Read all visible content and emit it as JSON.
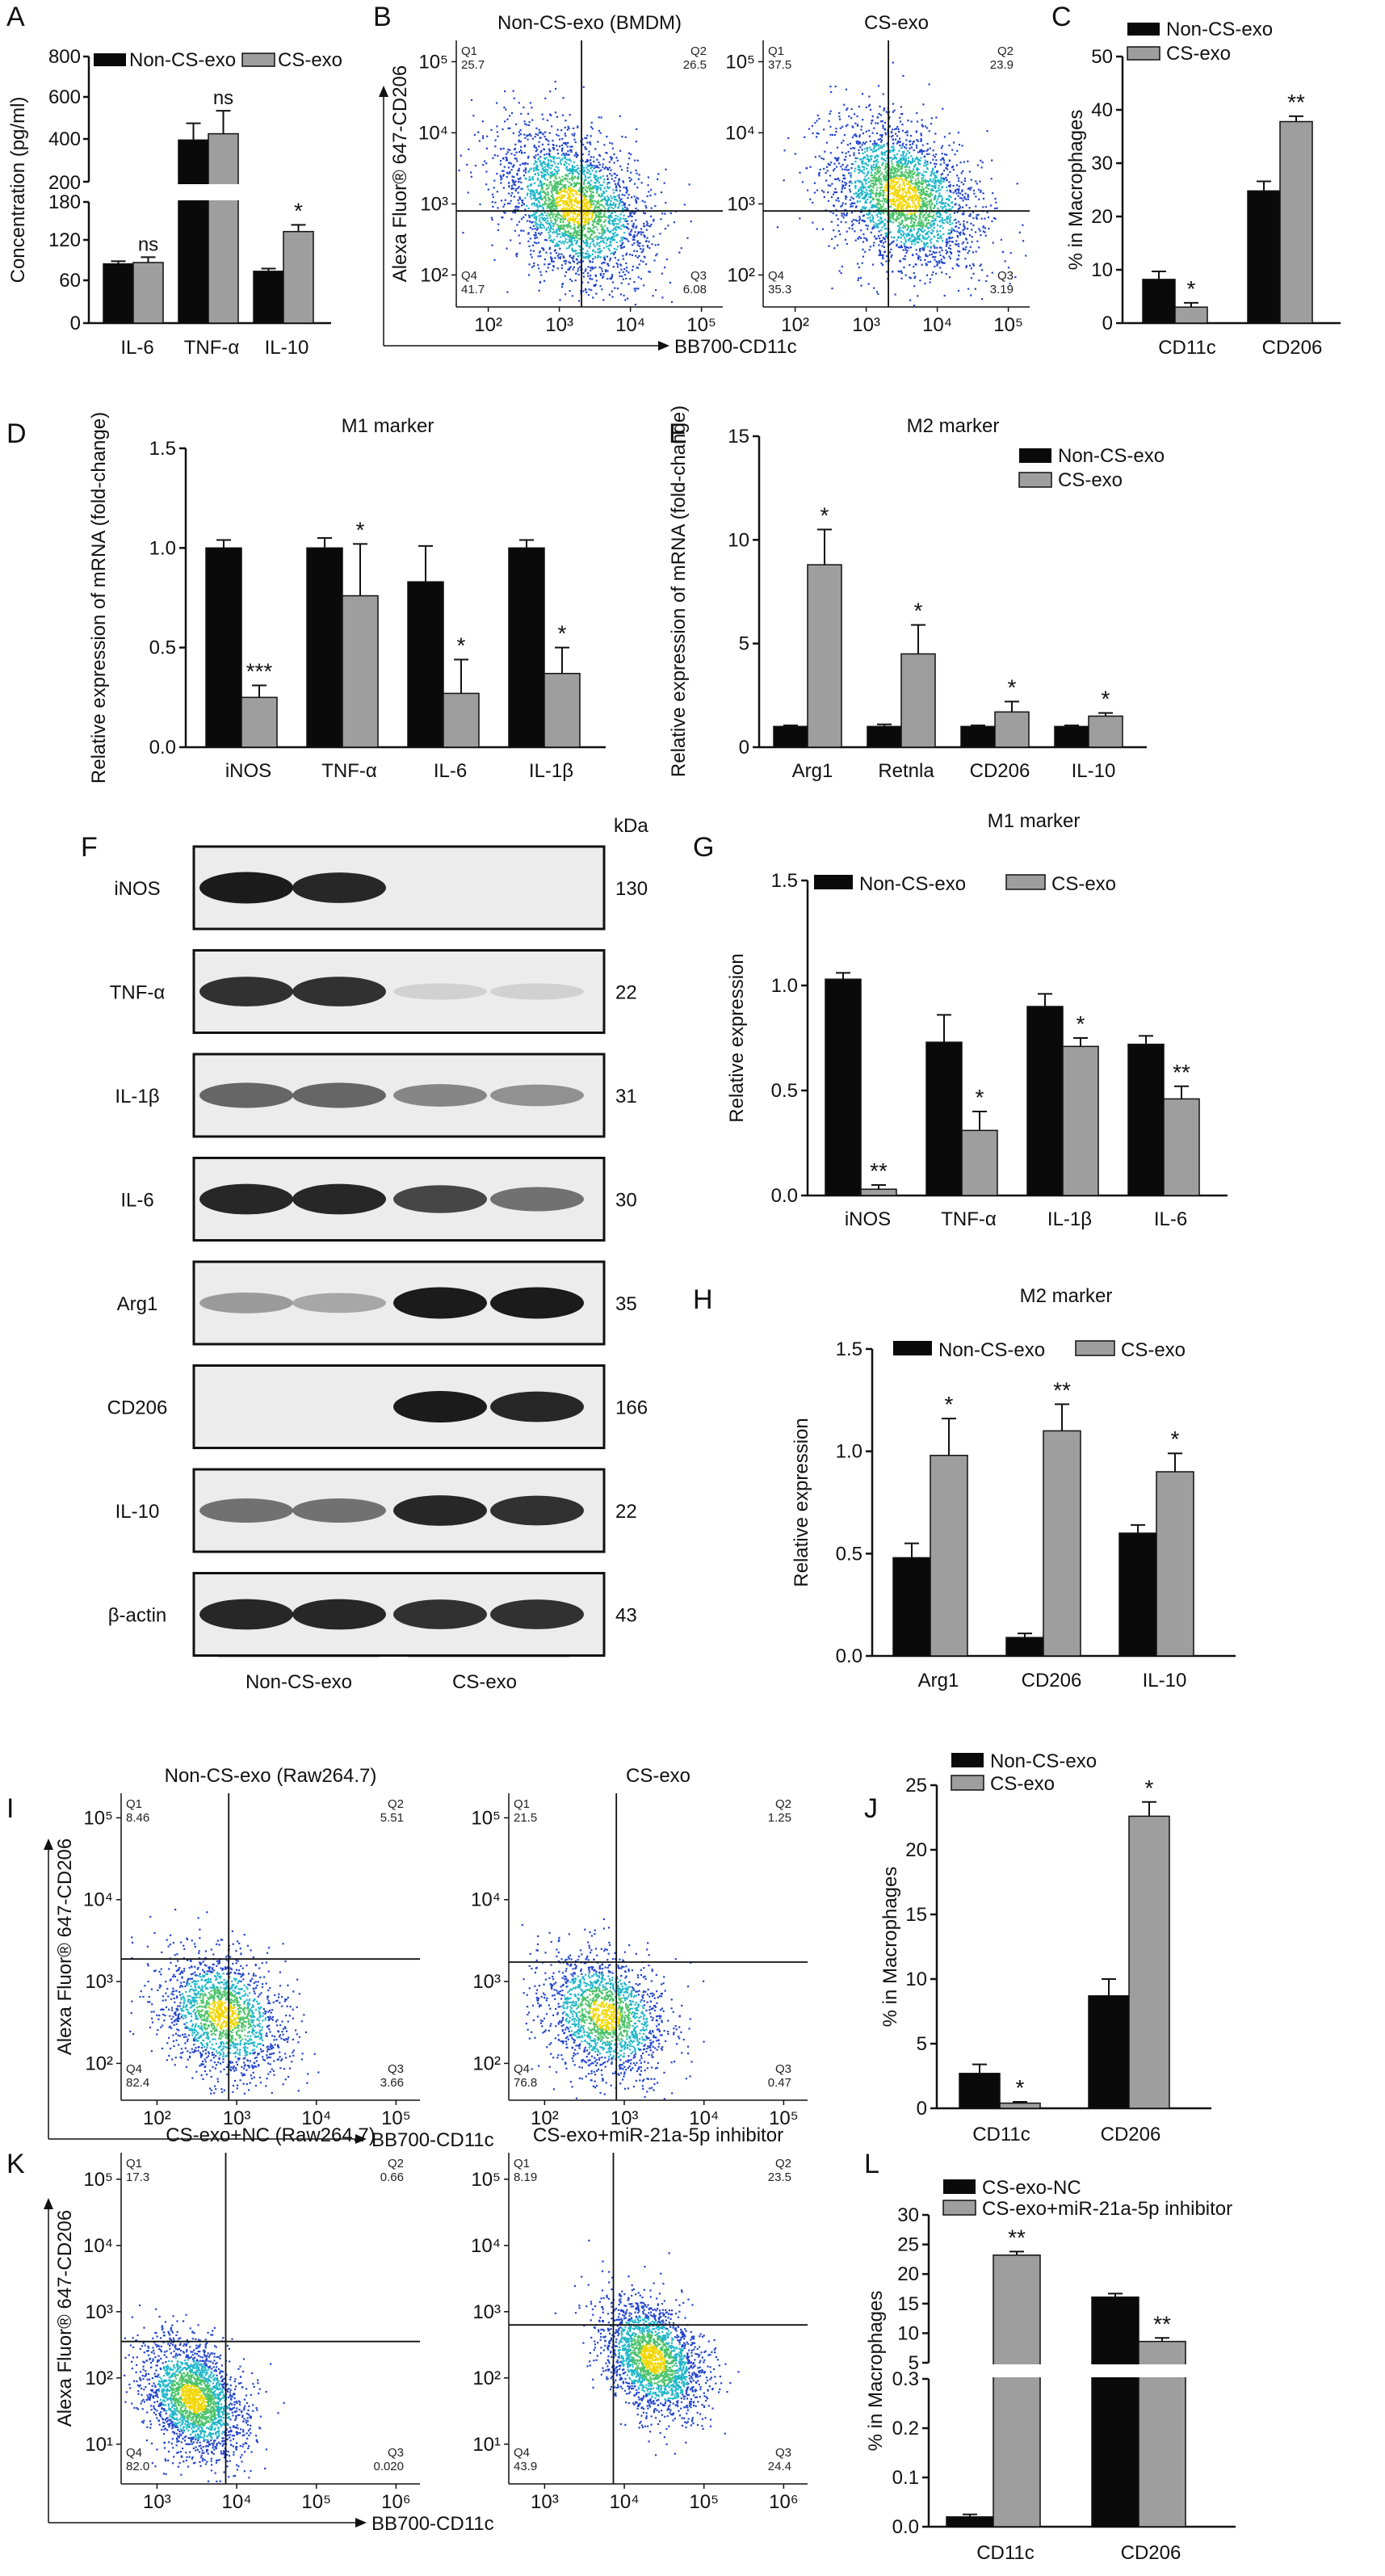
{
  "colors": {
    "series1": "#0a0a0a",
    "series2": "#9e9e9e"
  },
  "panels": {
    "A": "A",
    "B": "B",
    "C": "C",
    "D": "D",
    "E": "E",
    "F": "F",
    "G": "G",
    "H": "H",
    "I": "I",
    "J": "J",
    "K": "K",
    "L": "L"
  },
  "chart_data": [
    {
      "panel": "A",
      "type": "bar",
      "categories": [
        "IL-6",
        "TNF-α",
        "IL-10"
      ],
      "series": [
        {
          "name": "Non-CS-exo",
          "values": [
            88,
            400,
            77
          ],
          "errors": [
            4,
            80,
            4
          ]
        },
        {
          "name": "CS-exo",
          "values": [
            90,
            430,
            136
          ],
          "errors": [
            8,
            110,
            10
          ]
        }
      ],
      "significance": [
        "ns",
        "ns",
        "*"
      ],
      "ylabel": "Concentration (pg/ml)",
      "ylim": [
        0,
        800
      ],
      "axis_break": [
        180,
        200
      ],
      "yticks": [
        0,
        60,
        120,
        180,
        200,
        400,
        600,
        800
      ]
    },
    {
      "panel": "B",
      "type": "scatter",
      "plots": [
        {
          "title": "Non-CS-exo (BMDM)",
          "quadrants": {
            "Q1": "25.7",
            "Q2": "26.5",
            "Q3": "6.08",
            "Q4": "41.7"
          }
        },
        {
          "title": "CS-exo",
          "quadrants": {
            "Q1": "37.5",
            "Q2": "23.9",
            "Q3": "3.19",
            "Q4": "35.3"
          }
        }
      ],
      "xlabel": "BB700-CD11c",
      "ylabel": "Alexa Fluor® 647-CD206",
      "xticks": [
        "10²",
        "10³",
        "10⁴",
        "10⁵"
      ],
      "yticks": [
        "10²",
        "10³",
        "10⁴",
        "10⁵"
      ]
    },
    {
      "panel": "C",
      "type": "bar",
      "categories": [
        "CD11c",
        "CD206"
      ],
      "series": [
        {
          "name": "Non-CS-exo",
          "values": [
            8.2,
            24.8
          ],
          "errors": [
            1.5,
            1.8
          ]
        },
        {
          "name": "CS-exo",
          "values": [
            3.0,
            37.8
          ],
          "errors": [
            0.8,
            1.0
          ]
        }
      ],
      "significance": [
        "*",
        "**"
      ],
      "ylabel": "% in Macrophages",
      "ylim": [
        0,
        50
      ],
      "yticks": [
        0,
        10,
        20,
        30,
        40,
        50
      ]
    },
    {
      "panel": "D",
      "type": "bar",
      "title": "M1 marker",
      "categories": [
        "iNOS",
        "TNF-α",
        "IL-6",
        "IL-1β"
      ],
      "series": [
        {
          "name": "Non-CS-exo",
          "values": [
            1.0,
            1.0,
            0.83,
            1.0
          ],
          "errors": [
            0.04,
            0.05,
            0.18,
            0.04
          ]
        },
        {
          "name": "CS-exo",
          "values": [
            0.25,
            0.76,
            0.27,
            0.37
          ],
          "errors": [
            0.06,
            0.26,
            0.17,
            0.13
          ]
        }
      ],
      "significance": [
        "***",
        "*",
        "*",
        "*"
      ],
      "ylabel": "Relative expression of mRNA (fold-change)",
      "ylim": [
        0,
        1.5
      ],
      "yticks": [
        0.0,
        0.5,
        1.0,
        1.5
      ]
    },
    {
      "panel": "E",
      "type": "bar",
      "title": "M2 marker",
      "categories": [
        "Arg1",
        "Retnla",
        "CD206",
        "IL-10"
      ],
      "series": [
        {
          "name": "Non-CS-exo",
          "values": [
            1.0,
            1.0,
            1.0,
            1.0
          ],
          "errors": [
            0.05,
            0.1,
            0.05,
            0.05
          ]
        },
        {
          "name": "CS-exo",
          "values": [
            8.8,
            4.5,
            1.7,
            1.5
          ],
          "errors": [
            1.7,
            1.4,
            0.5,
            0.15
          ]
        }
      ],
      "significance": [
        "*",
        "*",
        "*",
        "*"
      ],
      "ylabel": "Relative expression of mRNA (fold-change)",
      "ylim": [
        0,
        15
      ],
      "yticks": [
        0,
        5,
        10,
        15
      ]
    },
    {
      "panel": "F",
      "type": "table",
      "unit": "kDa",
      "bands": [
        {
          "name": "iNOS",
          "kda": "130",
          "intensity": [
            0.95,
            0.9,
            0.0,
            0.0
          ]
        },
        {
          "name": "TNF-α",
          "kda": "22",
          "intensity": [
            0.85,
            0.85,
            0.1,
            0.1
          ]
        },
        {
          "name": "IL-1β",
          "kda": "31",
          "intensity": [
            0.6,
            0.6,
            0.45,
            0.4
          ]
        },
        {
          "name": "IL-6",
          "kda": "30",
          "intensity": [
            0.9,
            0.9,
            0.75,
            0.55
          ]
        },
        {
          "name": "Arg1",
          "kda": "35",
          "intensity": [
            0.35,
            0.3,
            0.95,
            0.95
          ]
        },
        {
          "name": "CD206",
          "kda": "166",
          "intensity": [
            0.0,
            0.0,
            0.95,
            0.9
          ]
        },
        {
          "name": "IL-10",
          "kda": "22",
          "intensity": [
            0.55,
            0.55,
            0.9,
            0.85
          ]
        },
        {
          "name": "β-actin",
          "kda": "43",
          "intensity": [
            0.9,
            0.9,
            0.85,
            0.85
          ]
        }
      ],
      "groups": [
        "Non-CS-exo",
        "CS-exo"
      ]
    },
    {
      "panel": "G",
      "type": "bar",
      "title": "M1 marker",
      "categories": [
        "iNOS",
        "TNF-α",
        "IL-1β",
        "IL-6"
      ],
      "series": [
        {
          "name": "Non-CS-exo",
          "values": [
            1.03,
            0.73,
            0.9,
            0.72
          ],
          "errors": [
            0.03,
            0.13,
            0.06,
            0.04
          ]
        },
        {
          "name": "CS-exo",
          "values": [
            0.03,
            0.31,
            0.71,
            0.46
          ],
          "errors": [
            0.02,
            0.09,
            0.04,
            0.06
          ]
        }
      ],
      "significance": [
        "**",
        "*",
        "*",
        "**"
      ],
      "ylabel": "Relative expression",
      "ylim": [
        0,
        1.5
      ],
      "yticks": [
        0.0,
        0.5,
        1.0,
        1.5
      ]
    },
    {
      "panel": "H",
      "type": "bar",
      "title": "M2 marker",
      "categories": [
        "Arg1",
        "CD206",
        "IL-10"
      ],
      "series": [
        {
          "name": "Non-CS-exo",
          "values": [
            0.48,
            0.09,
            0.6
          ],
          "errors": [
            0.07,
            0.02,
            0.04
          ]
        },
        {
          "name": "CS-exo",
          "values": [
            0.98,
            1.1,
            0.9
          ],
          "errors": [
            0.18,
            0.13,
            0.09
          ]
        }
      ],
      "significance": [
        "*",
        "**",
        "*"
      ],
      "ylabel": "Relative expression",
      "ylim": [
        0,
        1.5
      ],
      "yticks": [
        0.0,
        0.5,
        1.0,
        1.5
      ]
    },
    {
      "panel": "I",
      "type": "scatter",
      "plots": [
        {
          "title": "Non-CS-exo (Raw264.7)",
          "quadrants": {
            "Q1": "8.46",
            "Q2": "5.51",
            "Q3": "3.66",
            "Q4": "82.4"
          }
        },
        {
          "title": "CS-exo",
          "quadrants": {
            "Q1": "21.5",
            "Q2": "1.25",
            "Q3": "0.47",
            "Q4": "76.8"
          }
        }
      ],
      "xlabel": "BB700-CD11c",
      "ylabel": "Alexa Fluor® 647-CD206",
      "xticks": [
        "10²",
        "10³",
        "10⁴",
        "10⁵"
      ],
      "yticks": [
        "10²",
        "10³",
        "10⁴",
        "10⁵"
      ]
    },
    {
      "panel": "J",
      "type": "bar",
      "categories": [
        "CD11c",
        "CD206"
      ],
      "series": [
        {
          "name": "Non-CS-exo",
          "values": [
            2.7,
            8.7
          ],
          "errors": [
            0.7,
            1.3
          ]
        },
        {
          "name": "CS-exo",
          "values": [
            0.4,
            22.6
          ],
          "errors": [
            0.1,
            1.1
          ]
        }
      ],
      "significance": [
        "*",
        "*"
      ],
      "ylabel": "% in Macrophages",
      "ylim": [
        0,
        25
      ],
      "yticks": [
        0,
        5,
        10,
        15,
        20,
        25
      ]
    },
    {
      "panel": "K",
      "type": "scatter",
      "plots": [
        {
          "title": "CS-exo+NC (Raw264.7)",
          "quadrants": {
            "Q1": "17.3",
            "Q2": "0.66",
            "Q3": "0.020",
            "Q4": "82.0"
          }
        },
        {
          "title": "CS-exo+miR-21a-5p inhibitor",
          "quadrants": {
            "Q1": "8.19",
            "Q2": "23.5",
            "Q3": "24.4",
            "Q4": "43.9"
          }
        }
      ],
      "xlabel": "BB700-CD11c",
      "ylabel": "Alexa Fluor® 647-CD206",
      "xticks": [
        "10³",
        "10⁴",
        "10⁵",
        "10⁶"
      ],
      "yticks": [
        "10¹",
        "10²",
        "10³",
        "10⁴",
        "10⁵"
      ]
    },
    {
      "panel": "L",
      "type": "bar",
      "categories": [
        "CD11c",
        "CD206"
      ],
      "series": [
        {
          "name": "CS-exo-NC",
          "values": [
            0.02,
            16.1
          ],
          "errors": [
            0.005,
            0.6
          ]
        },
        {
          "name": "CS-exo+miR-21a-5p inhibitor",
          "values": [
            23.2,
            8.6
          ],
          "errors": [
            0.6,
            0.6
          ]
        }
      ],
      "significance": [
        "**",
        "**"
      ],
      "ylabel": "% in Macrophages",
      "ylim": [
        0,
        30
      ],
      "axis_break": [
        0.3,
        5
      ],
      "yticks": [
        0.0,
        0.1,
        0.2,
        0.3,
        5,
        10,
        15,
        20,
        25,
        30
      ]
    }
  ]
}
